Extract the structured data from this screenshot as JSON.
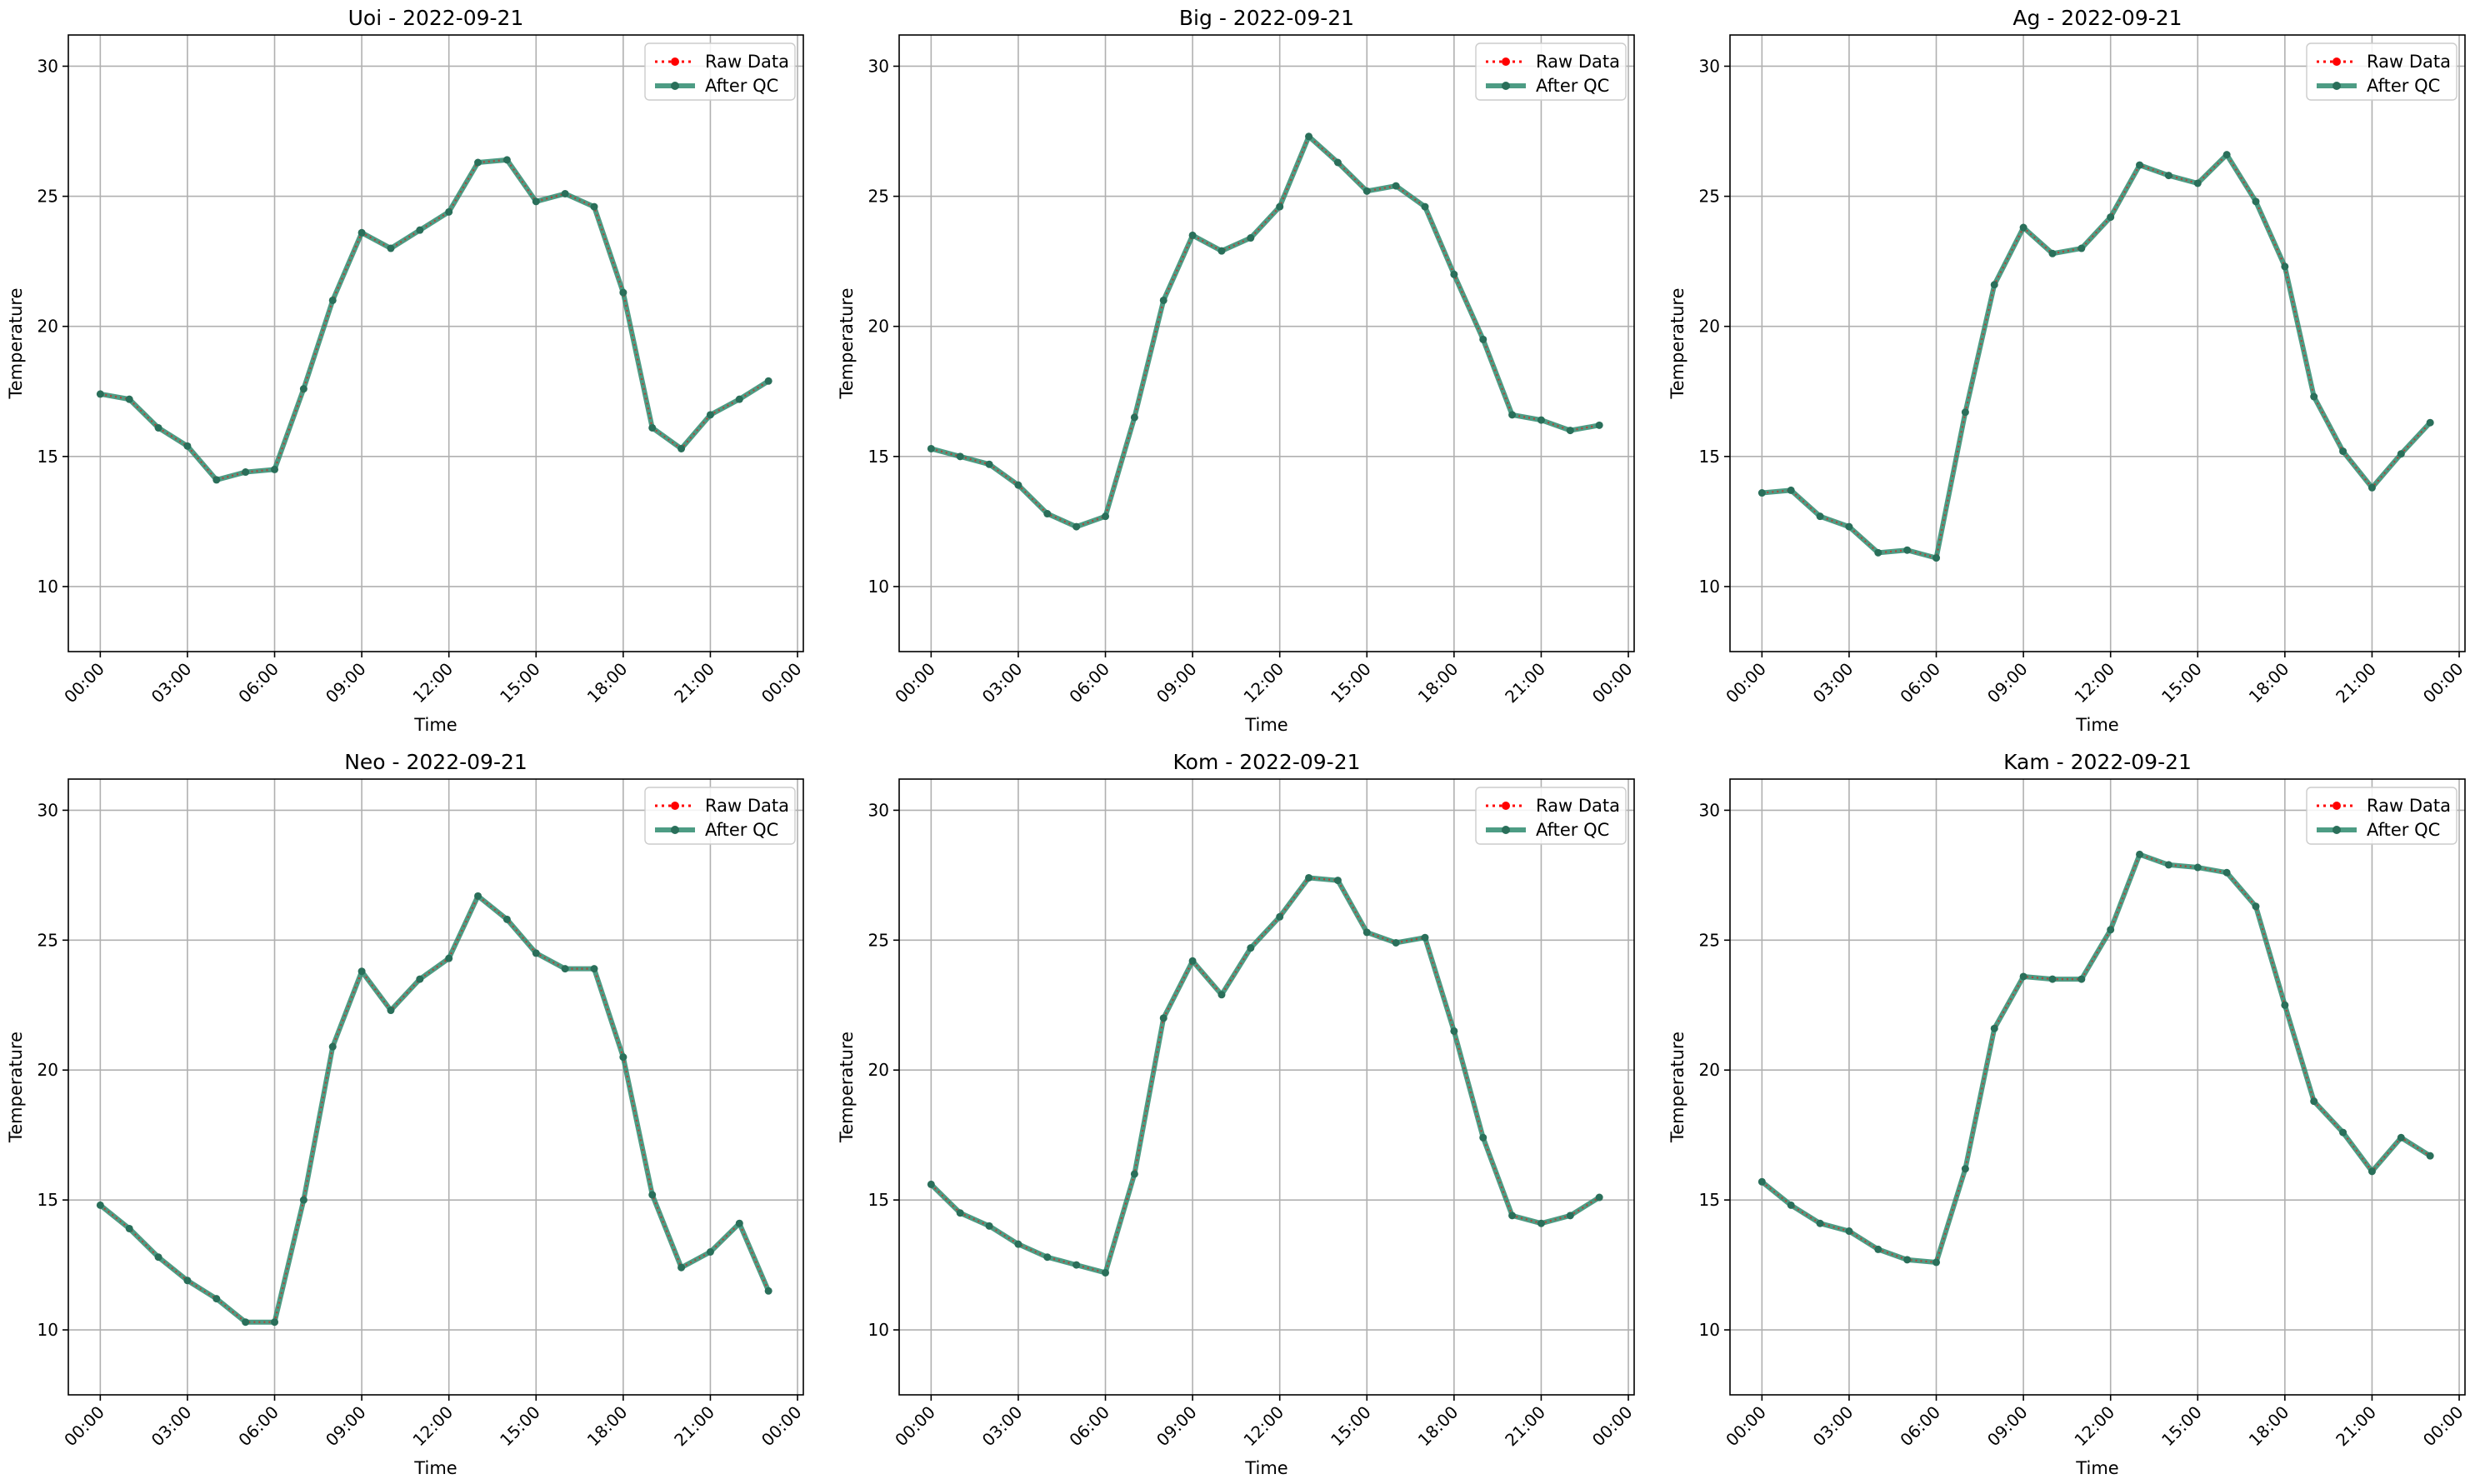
{
  "figure": {
    "title": ""
  },
  "colors": {
    "raw": "#ff0000",
    "qc": "#2e8b6e",
    "grid": "#b0b0b0",
    "axes": "#000000"
  },
  "chart_data": [
    {
      "type": "line",
      "title": "Uoi - 2022-09-21",
      "xlabel": "Time",
      "ylabel": "Temperature",
      "x_ticks": [
        "00:00",
        "03:00",
        "06:00",
        "09:00",
        "12:00",
        "15:00",
        "18:00",
        "21:00",
        "00:00"
      ],
      "y_ticks": [
        "10",
        "15",
        "20",
        "25",
        "30"
      ],
      "ylim": [
        7.5,
        31.2
      ],
      "xlim_hours": [
        -1.1,
        24.2
      ],
      "grid": true,
      "legend_position": "top-right",
      "x_hours": [
        0,
        1,
        2,
        3,
        4,
        5,
        6,
        7,
        8,
        9,
        10,
        11,
        12,
        13,
        14,
        15,
        16,
        17,
        18,
        19,
        20,
        21,
        22,
        23
      ],
      "series": [
        {
          "name": "Raw Data",
          "values": [
            17.4,
            17.2,
            16.1,
            15.4,
            14.1,
            14.4,
            14.5,
            17.6,
            21.0,
            23.6,
            23.0,
            23.7,
            24.4,
            26.3,
            26.4,
            24.8,
            25.1,
            24.6,
            21.3,
            16.1,
            15.3,
            16.6,
            17.2,
            17.9
          ]
        },
        {
          "name": "After QC",
          "values": [
            17.4,
            17.2,
            16.1,
            15.4,
            14.1,
            14.4,
            14.5,
            17.6,
            21.0,
            23.6,
            23.0,
            23.7,
            24.4,
            26.3,
            26.4,
            24.8,
            25.1,
            24.6,
            21.3,
            16.1,
            15.3,
            16.6,
            17.2,
            17.9
          ]
        }
      ]
    },
    {
      "type": "line",
      "title": "Big - 2022-09-21",
      "xlabel": "Time",
      "ylabel": "Temperature",
      "x_ticks": [
        "00:00",
        "03:00",
        "06:00",
        "09:00",
        "12:00",
        "15:00",
        "18:00",
        "21:00",
        "00:00"
      ],
      "y_ticks": [
        "10",
        "15",
        "20",
        "25",
        "30"
      ],
      "ylim": [
        7.5,
        31.2
      ],
      "xlim_hours": [
        -1.1,
        24.2
      ],
      "grid": true,
      "legend_position": "top-right",
      "x_hours": [
        0,
        1,
        2,
        3,
        4,
        5,
        6,
        7,
        8,
        9,
        10,
        11,
        12,
        13,
        14,
        15,
        16,
        17,
        18,
        19,
        20,
        21,
        22,
        23
      ],
      "series": [
        {
          "name": "Raw Data",
          "values": [
            15.3,
            15.0,
            14.7,
            13.9,
            12.8,
            12.3,
            12.7,
            16.5,
            21.0,
            23.5,
            22.9,
            23.4,
            24.6,
            27.3,
            26.3,
            25.2,
            25.4,
            24.6,
            22.0,
            19.5,
            16.6,
            16.4,
            16.0,
            16.2
          ]
        },
        {
          "name": "After QC",
          "values": [
            15.3,
            15.0,
            14.7,
            13.9,
            12.8,
            12.3,
            12.7,
            16.5,
            21.0,
            23.5,
            22.9,
            23.4,
            24.6,
            27.3,
            26.3,
            25.2,
            25.4,
            24.6,
            22.0,
            19.5,
            16.6,
            16.4,
            16.0,
            16.2
          ]
        }
      ]
    },
    {
      "type": "line",
      "title": "Ag - 2022-09-21",
      "xlabel": "Time",
      "ylabel": "Temperature",
      "x_ticks": [
        "00:00",
        "03:00",
        "06:00",
        "09:00",
        "12:00",
        "15:00",
        "18:00",
        "21:00",
        "00:00"
      ],
      "y_ticks": [
        "10",
        "15",
        "20",
        "25",
        "30"
      ],
      "ylim": [
        7.5,
        31.2
      ],
      "xlim_hours": [
        -1.1,
        24.2
      ],
      "grid": true,
      "legend_position": "top-right",
      "x_hours": [
        0,
        1,
        2,
        3,
        4,
        5,
        6,
        7,
        8,
        9,
        10,
        11,
        12,
        13,
        14,
        15,
        16,
        17,
        18,
        19,
        20,
        21,
        22,
        23
      ],
      "series": [
        {
          "name": "Raw Data",
          "values": [
            13.6,
            13.7,
            12.7,
            12.3,
            11.3,
            11.4,
            11.1,
            16.7,
            21.6,
            23.8,
            22.8,
            23.0,
            24.2,
            26.2,
            25.8,
            25.5,
            26.6,
            24.8,
            22.3,
            17.3,
            15.2,
            13.8,
            15.1,
            16.3
          ]
        },
        {
          "name": "After QC",
          "values": [
            13.6,
            13.7,
            12.7,
            12.3,
            11.3,
            11.4,
            11.1,
            16.7,
            21.6,
            23.8,
            22.8,
            23.0,
            24.2,
            26.2,
            25.8,
            25.5,
            26.6,
            24.8,
            22.3,
            17.3,
            15.2,
            13.8,
            15.1,
            16.3
          ]
        }
      ]
    },
    {
      "type": "line",
      "title": "Neo - 2022-09-21",
      "xlabel": "Time",
      "ylabel": "Temperature",
      "x_ticks": [
        "00:00",
        "03:00",
        "06:00",
        "09:00",
        "12:00",
        "15:00",
        "18:00",
        "21:00",
        "00:00"
      ],
      "y_ticks": [
        "10",
        "15",
        "20",
        "25",
        "30"
      ],
      "ylim": [
        7.5,
        31.2
      ],
      "xlim_hours": [
        -1.1,
        24.2
      ],
      "grid": true,
      "legend_position": "top-right",
      "x_hours": [
        0,
        1,
        2,
        3,
        4,
        5,
        6,
        7,
        8,
        9,
        10,
        11,
        12,
        13,
        14,
        15,
        16,
        17,
        18,
        19,
        20,
        21,
        22,
        23
      ],
      "series": [
        {
          "name": "Raw Data",
          "values": [
            14.8,
            13.9,
            12.8,
            11.9,
            11.2,
            10.3,
            10.3,
            15.0,
            20.9,
            23.8,
            22.3,
            23.5,
            24.3,
            26.7,
            25.8,
            24.5,
            23.9,
            23.9,
            20.5,
            15.2,
            12.4,
            13.0,
            14.1,
            11.5
          ]
        },
        {
          "name": "After QC",
          "values": [
            14.8,
            13.9,
            12.8,
            11.9,
            11.2,
            10.3,
            10.3,
            15.0,
            20.9,
            23.8,
            22.3,
            23.5,
            24.3,
            26.7,
            25.8,
            24.5,
            23.9,
            23.9,
            20.5,
            15.2,
            12.4,
            13.0,
            14.1,
            11.5
          ]
        }
      ]
    },
    {
      "type": "line",
      "title": "Kom - 2022-09-21",
      "xlabel": "Time",
      "ylabel": "Temperature",
      "x_ticks": [
        "00:00",
        "03:00",
        "06:00",
        "09:00",
        "12:00",
        "15:00",
        "18:00",
        "21:00",
        "00:00"
      ],
      "y_ticks": [
        "10",
        "15",
        "20",
        "25",
        "30"
      ],
      "ylim": [
        7.5,
        31.2
      ],
      "xlim_hours": [
        -1.1,
        24.2
      ],
      "grid": true,
      "legend_position": "top-right",
      "x_hours": [
        0,
        1,
        2,
        3,
        4,
        5,
        6,
        7,
        8,
        9,
        10,
        11,
        12,
        13,
        14,
        15,
        16,
        17,
        18,
        19,
        20,
        21,
        22,
        23
      ],
      "series": [
        {
          "name": "Raw Data",
          "values": [
            15.6,
            14.5,
            14.0,
            13.3,
            12.8,
            12.5,
            12.2,
            16.0,
            22.0,
            24.2,
            22.9,
            24.7,
            25.9,
            27.4,
            27.3,
            25.3,
            24.9,
            25.1,
            21.5,
            17.4,
            14.4,
            14.1,
            14.4,
            15.1
          ]
        },
        {
          "name": "After QC",
          "values": [
            15.6,
            14.5,
            14.0,
            13.3,
            12.8,
            12.5,
            12.2,
            16.0,
            22.0,
            24.2,
            22.9,
            24.7,
            25.9,
            27.4,
            27.3,
            25.3,
            24.9,
            25.1,
            21.5,
            17.4,
            14.4,
            14.1,
            14.4,
            15.1
          ]
        }
      ]
    },
    {
      "type": "line",
      "title": "Kam - 2022-09-21",
      "xlabel": "Time",
      "ylabel": "Temperature",
      "x_ticks": [
        "00:00",
        "03:00",
        "06:00",
        "09:00",
        "12:00",
        "15:00",
        "18:00",
        "21:00",
        "00:00"
      ],
      "y_ticks": [
        "10",
        "15",
        "20",
        "25",
        "30"
      ],
      "ylim": [
        7.5,
        31.2
      ],
      "xlim_hours": [
        -1.1,
        24.2
      ],
      "grid": true,
      "legend_position": "top-right",
      "x_hours": [
        0,
        1,
        2,
        3,
        4,
        5,
        6,
        7,
        8,
        9,
        10,
        11,
        12,
        13,
        14,
        15,
        16,
        17,
        18,
        19,
        20,
        21,
        22,
        23
      ],
      "series": [
        {
          "name": "Raw Data",
          "values": [
            15.7,
            14.8,
            14.1,
            13.8,
            13.1,
            12.7,
            12.6,
            16.2,
            21.6,
            23.6,
            23.5,
            23.5,
            25.4,
            28.3,
            27.9,
            27.8,
            27.6,
            26.3,
            22.5,
            18.8,
            17.6,
            16.1,
            17.4,
            16.7
          ]
        },
        {
          "name": "After QC",
          "values": [
            15.7,
            14.8,
            14.1,
            13.8,
            13.1,
            12.7,
            12.6,
            16.2,
            21.6,
            23.6,
            23.5,
            23.5,
            25.4,
            28.3,
            27.9,
            27.8,
            27.6,
            26.3,
            22.5,
            18.8,
            17.6,
            16.1,
            17.4,
            16.7
          ]
        }
      ]
    }
  ]
}
